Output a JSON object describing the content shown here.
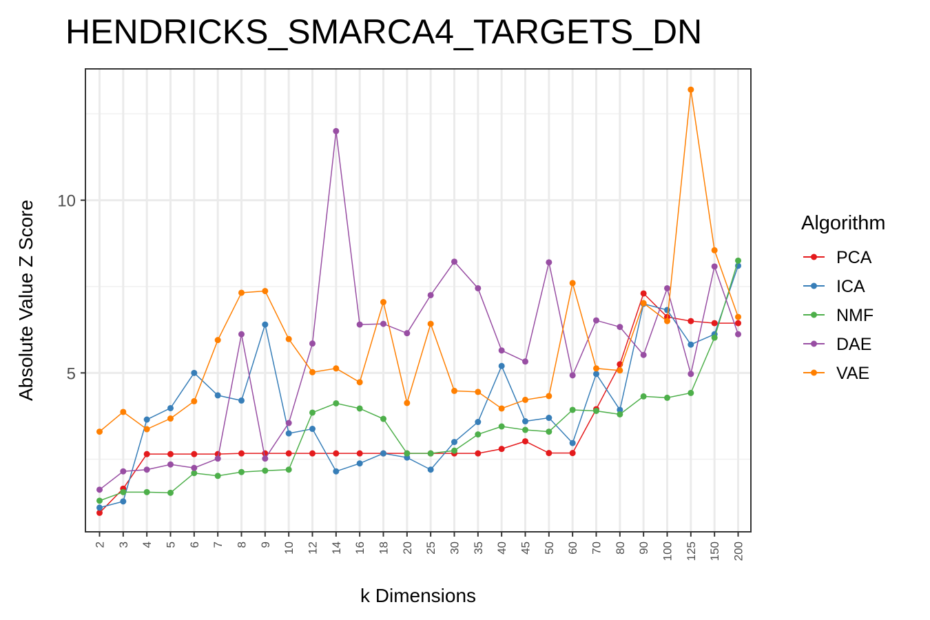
{
  "chart_data": {
    "type": "line",
    "title": "HENDRICKS_SMARCA4_TARGETS_DN",
    "xlabel": "k Dimensions",
    "ylabel": "Absolute Value Z Score",
    "categories": [
      "2",
      "3",
      "4",
      "5",
      "6",
      "7",
      "8",
      "9",
      "10",
      "12",
      "14",
      "16",
      "18",
      "20",
      "25",
      "30",
      "35",
      "40",
      "45",
      "50",
      "60",
      "70",
      "80",
      "90",
      "100",
      "125",
      "150",
      "200"
    ],
    "y_ticks": [
      5,
      10
    ],
    "y_tick_labels": [
      "5",
      "10"
    ],
    "ylim": [
      0.4,
      13.8
    ],
    "grid": true,
    "legend": {
      "title": "Algorithm",
      "position": "right"
    },
    "series": [
      {
        "name": "PCA",
        "color": "#E41A1C",
        "values": [
          0.95,
          1.65,
          2.65,
          2.65,
          2.65,
          2.65,
          2.67,
          2.67,
          2.67,
          2.67,
          2.67,
          2.67,
          2.67,
          2.67,
          2.67,
          2.67,
          2.67,
          2.8,
          3.02,
          2.68,
          2.68,
          3.95,
          5.25,
          7.3,
          6.62,
          6.5,
          6.44,
          6.44
        ]
      },
      {
        "name": "ICA",
        "color": "#377EB8",
        "values": [
          1.1,
          1.28,
          3.65,
          3.98,
          5.0,
          4.35,
          4.2,
          6.4,
          3.25,
          3.38,
          2.15,
          2.38,
          2.67,
          2.55,
          2.2,
          3.0,
          3.58,
          5.2,
          3.6,
          3.7,
          2.97,
          4.97,
          3.93,
          7.0,
          6.82,
          5.82,
          6.12,
          8.1
        ]
      },
      {
        "name": "NMF",
        "color": "#4DAF4A",
        "values": [
          1.3,
          1.55,
          1.55,
          1.53,
          2.1,
          2.02,
          2.13,
          2.17,
          2.2,
          3.85,
          4.12,
          3.97,
          3.67,
          2.67,
          2.67,
          2.75,
          3.22,
          3.45,
          3.35,
          3.3,
          3.93,
          3.9,
          3.8,
          4.32,
          4.28,
          4.42,
          6.02,
          8.25
        ]
      },
      {
        "name": "DAE",
        "color": "#984EA3",
        "values": [
          1.62,
          2.15,
          2.2,
          2.35,
          2.25,
          2.52,
          6.12,
          2.52,
          3.55,
          5.85,
          12.0,
          6.4,
          6.42,
          6.15,
          7.25,
          8.22,
          7.45,
          5.65,
          5.33,
          8.2,
          4.93,
          6.52,
          6.33,
          5.52,
          7.45,
          4.97,
          8.08,
          6.12
        ]
      },
      {
        "name": "VAE",
        "color": "#FF7F00",
        "values": [
          3.3,
          3.87,
          3.37,
          3.68,
          4.18,
          5.95,
          7.32,
          7.37,
          5.98,
          5.02,
          5.13,
          4.73,
          7.05,
          4.13,
          6.42,
          4.48,
          4.45,
          3.97,
          4.22,
          4.33,
          7.6,
          5.13,
          5.07,
          7.02,
          6.5,
          13.2,
          8.55,
          6.62
        ]
      }
    ]
  }
}
